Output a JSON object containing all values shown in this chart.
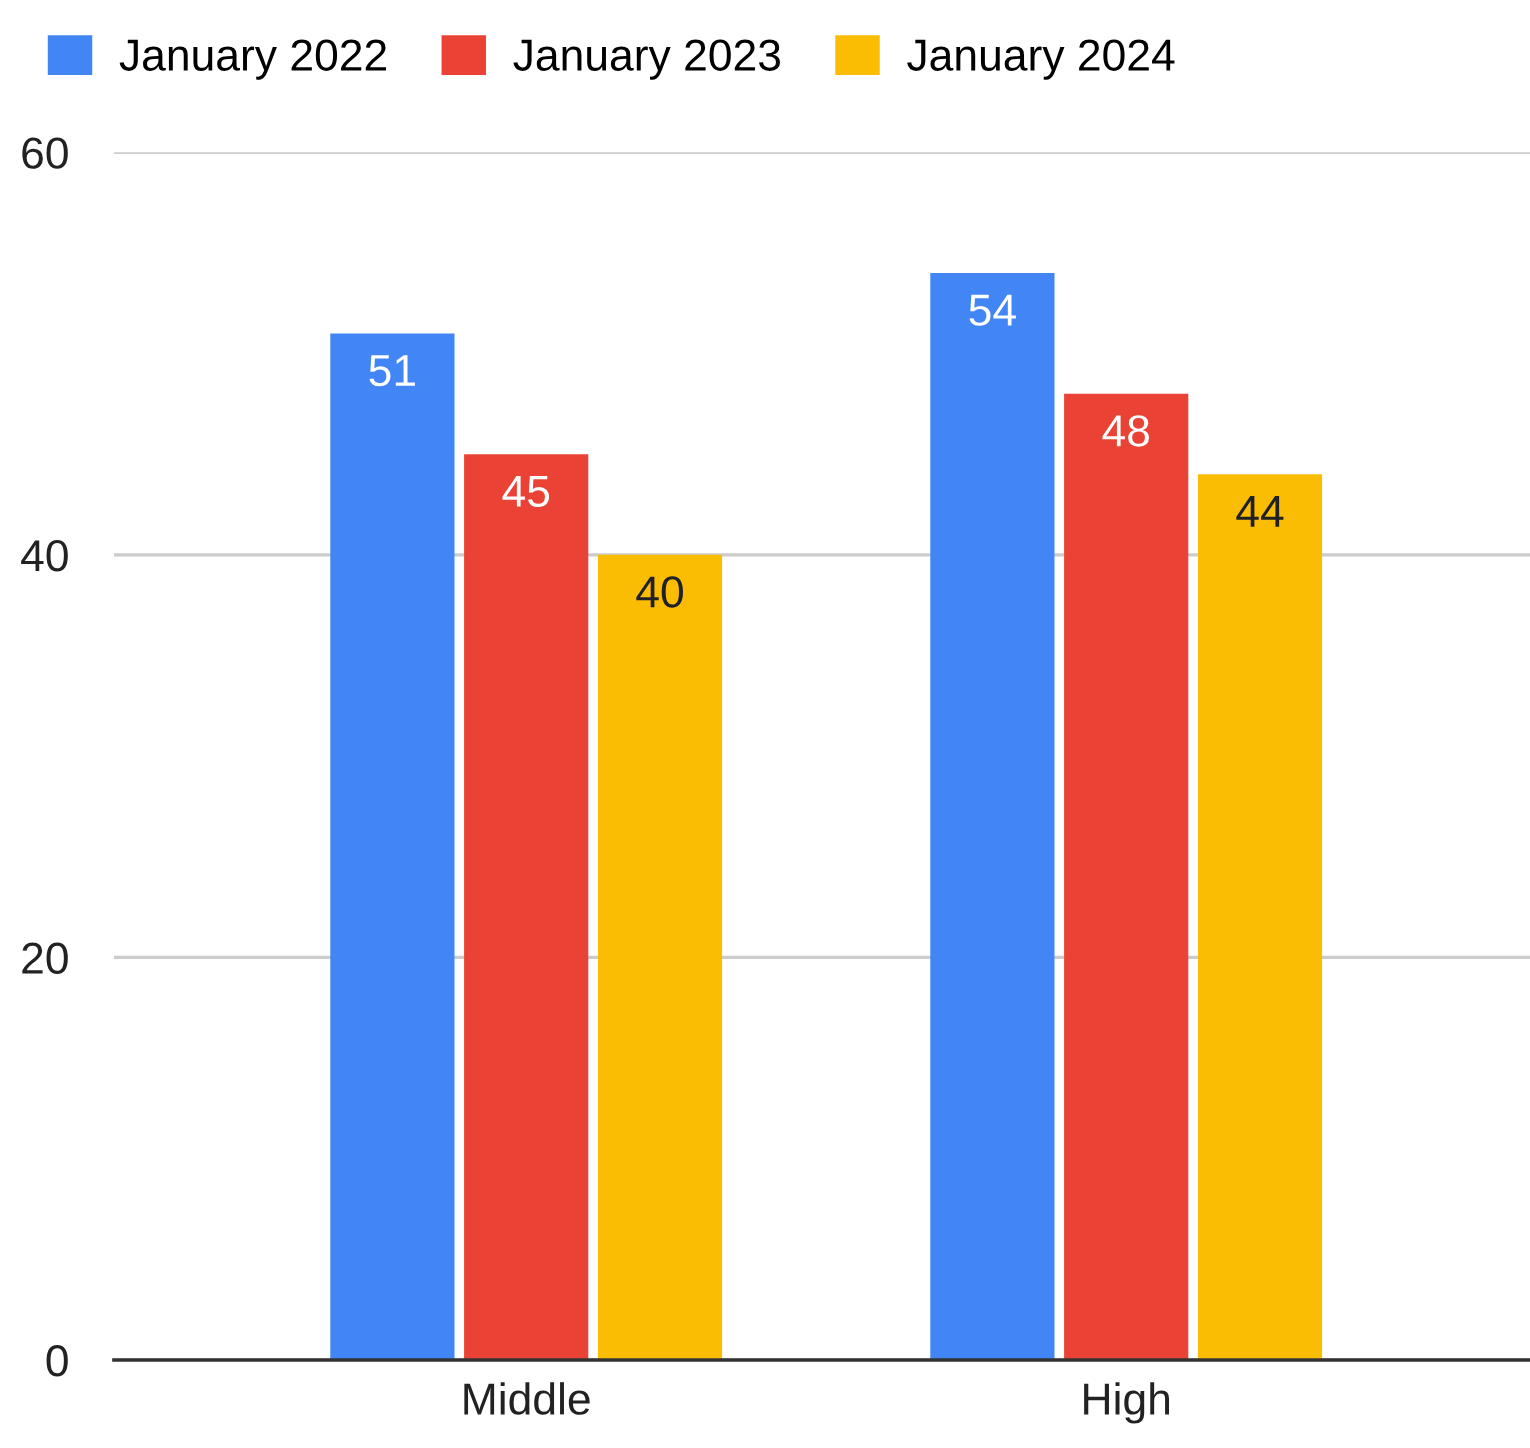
{
  "chart_data": {
    "type": "bar",
    "categories": [
      "Middle",
      "High"
    ],
    "series": [
      {
        "name": "January 2022",
        "color": "#4285f4",
        "values": [
          51,
          54
        ]
      },
      {
        "name": "January 2023",
        "color": "#ea4335",
        "values": [
          45,
          48
        ]
      },
      {
        "name": "January 2024",
        "color": "#fbbc04",
        "values": [
          40,
          44
        ]
      }
    ],
    "ylim": [
      0,
      60
    ],
    "yticks": [
      0,
      20,
      40,
      60
    ],
    "grid": "y",
    "legend": "top left",
    "data_labels": true
  }
}
